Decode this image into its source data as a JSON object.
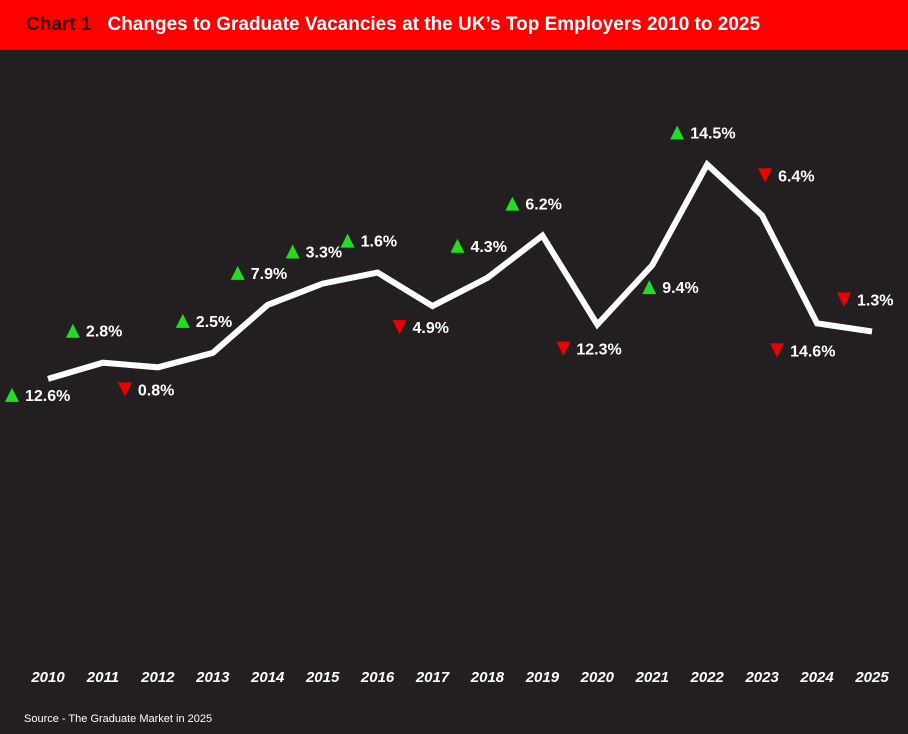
{
  "header": {
    "chart_number": "Chart 1",
    "title": "Changes to Graduate Vacancies at the UK’s Top Employers 2010 to 2025"
  },
  "source": "Source - The Graduate Market in 2025",
  "colors": {
    "background": "#231f20",
    "header": "#ff0000",
    "line": "#ffffff",
    "up": "#22dd22",
    "down": "#ee0000"
  },
  "chart_data": {
    "type": "line",
    "title": "Changes to Graduate Vacancies at the UK’s Top Employers 2010 to 2025",
    "xlabel": "",
    "ylabel": "",
    "categories": [
      "2010",
      "2011",
      "2012",
      "2013",
      "2014",
      "2015",
      "2016",
      "2017",
      "2018",
      "2019",
      "2020",
      "2021",
      "2022",
      "2023",
      "2024",
      "2025"
    ],
    "index_values": [
      100,
      102.8,
      102.0,
      104.5,
      112.8,
      116.5,
      118.4,
      112.6,
      117.5,
      124.8,
      109.4,
      119.7,
      137.1,
      128.3,
      109.6,
      108.2
    ],
    "ylim": [
      60,
      150
    ],
    "grid": false,
    "changes": [
      {
        "year": "2010",
        "direction": "up",
        "label": "12.6%"
      },
      {
        "year": "2011",
        "direction": "up",
        "label": "2.8%"
      },
      {
        "year": "2012",
        "direction": "down",
        "label": "0.8%"
      },
      {
        "year": "2013",
        "direction": "up",
        "label": "2.5%"
      },
      {
        "year": "2014",
        "direction": "up",
        "label": "7.9%"
      },
      {
        "year": "2015",
        "direction": "up",
        "label": "3.3%"
      },
      {
        "year": "2016",
        "direction": "up",
        "label": "1.6%"
      },
      {
        "year": "2017",
        "direction": "down",
        "label": "4.9%"
      },
      {
        "year": "2018",
        "direction": "up",
        "label": "4.3%"
      },
      {
        "year": "2019",
        "direction": "up",
        "label": "6.2%"
      },
      {
        "year": "2020",
        "direction": "down",
        "label": "12.3%"
      },
      {
        "year": "2021",
        "direction": "up",
        "label": "9.4%"
      },
      {
        "year": "2022",
        "direction": "up",
        "label": "14.5%"
      },
      {
        "year": "2023",
        "direction": "down",
        "label": "6.4%"
      },
      {
        "year": "2024",
        "direction": "down",
        "label": "14.6%"
      },
      {
        "year": "2025",
        "direction": "down",
        "label": "1.3%"
      }
    ]
  }
}
